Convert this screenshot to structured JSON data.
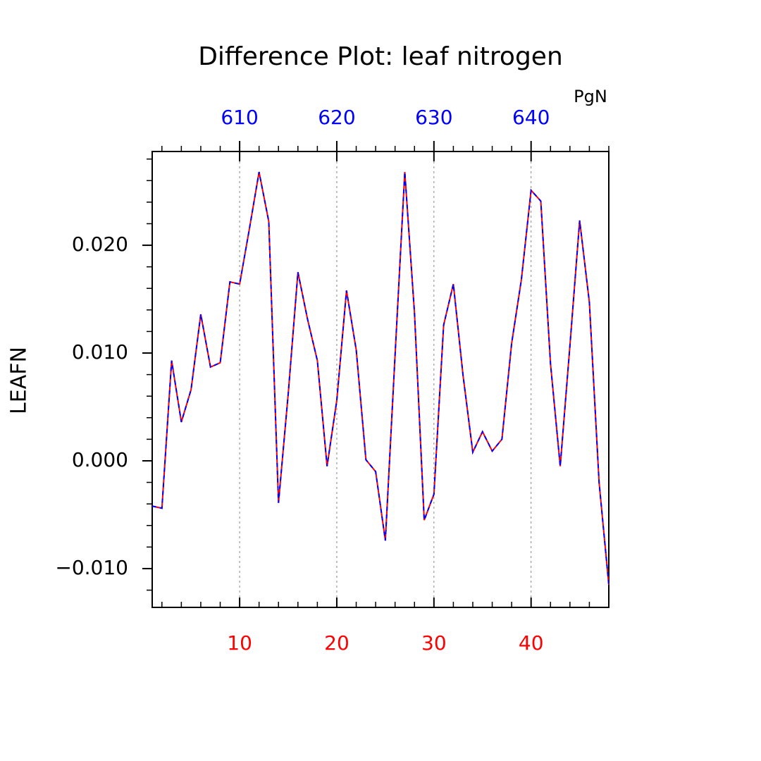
{
  "chart_data": {
    "type": "line",
    "title": "Difference Plot: leaf nitrogen",
    "y_label": "LEAFN",
    "x2_label": "PgN",
    "x": [
      1,
      2,
      3,
      4,
      5,
      6,
      7,
      8,
      9,
      10,
      11,
      12,
      13,
      14,
      15,
      16,
      17,
      18,
      19,
      20,
      21,
      22,
      23,
      24,
      25,
      26,
      27,
      28,
      29,
      30,
      31,
      32,
      33,
      34,
      35,
      36,
      37,
      38,
      39,
      40,
      41,
      42,
      43,
      44,
      45,
      46,
      47,
      48
    ],
    "series": [
      {
        "color": "#ff0000",
        "dash": false,
        "values": [
          -0.0042,
          -0.0044,
          0.0093,
          0.0036,
          0.0066,
          0.0136,
          0.0087,
          0.0091,
          0.0166,
          0.0164,
          0.0215,
          0.0268,
          0.0222,
          -0.0039,
          0.0062,
          0.0175,
          0.0131,
          0.0093,
          -0.0005,
          0.0056,
          0.0158,
          0.0103,
          0.0001,
          -0.001,
          -0.0074,
          0.0098,
          0.0268,
          0.0137,
          -0.0055,
          -0.0031,
          0.0126,
          0.0164,
          0.0079,
          0.0008,
          0.0027,
          0.0009,
          0.002,
          0.0109,
          0.0168,
          0.0251,
          0.0241,
          0.009,
          -0.0005,
          0.0107,
          0.0223,
          0.0147,
          -0.002,
          -0.0115
        ]
      },
      {
        "color": "#0000ff",
        "dash": true,
        "values": [
          -0.0042,
          -0.0044,
          0.0093,
          0.0036,
          0.0066,
          0.0136,
          0.0087,
          0.0091,
          0.0166,
          0.0164,
          0.0215,
          0.0268,
          0.0222,
          -0.0039,
          0.0062,
          0.0175,
          0.0131,
          0.0093,
          -0.0005,
          0.0056,
          0.0158,
          0.0103,
          0.0001,
          -0.001,
          -0.0074,
          0.0098,
          0.0268,
          0.0137,
          -0.0055,
          -0.0031,
          0.0126,
          0.0164,
          0.0079,
          0.0008,
          0.0027,
          0.0009,
          0.002,
          0.0109,
          0.0168,
          0.0251,
          0.0241,
          0.009,
          -0.0005,
          0.0107,
          0.0223,
          0.0147,
          -0.002,
          -0.0115
        ]
      }
    ],
    "xlim": [
      1,
      48
    ],
    "xticks": [
      10,
      20,
      30,
      40
    ],
    "xtick_color": "#ff0000",
    "xminorticks": [
      2,
      4,
      6,
      8,
      12,
      14,
      16,
      18,
      22,
      24,
      26,
      28,
      32,
      34,
      36,
      38,
      42,
      44,
      46,
      48
    ],
    "x2lim": [
      601,
      648
    ],
    "x2ticks": [
      610,
      620,
      630,
      640
    ],
    "x2tick_color": "#0000ff",
    "x2minorticks": [
      602,
      604,
      606,
      608,
      612,
      614,
      616,
      618,
      622,
      624,
      626,
      628,
      632,
      634,
      636,
      638,
      642,
      644,
      646,
      648
    ],
    "ylim": [
      -0.0136,
      0.0287
    ],
    "yticks": [
      {
        "value": -0.01,
        "label": "−0.010"
      },
      {
        "value": 0,
        "label": "0.000"
      },
      {
        "value": 0.01,
        "label": "0.010"
      },
      {
        "value": 0.02,
        "label": "0.020"
      }
    ],
    "yminorticks": [
      -0.012,
      -0.008,
      -0.006,
      -0.004,
      -0.002,
      0.002,
      0.004,
      0.006,
      0.008,
      0.012,
      0.014,
      0.016,
      0.018,
      0.022,
      0.024,
      0.026,
      0.028
    ],
    "grid": true
  }
}
